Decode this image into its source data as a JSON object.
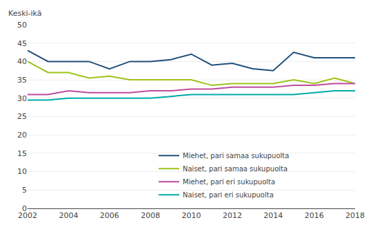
{
  "chart_data": {
    "type": "line",
    "ylabel": "Keski-ikä",
    "x": [
      2002,
      2003,
      2004,
      2005,
      2006,
      2007,
      2008,
      2009,
      2010,
      2011,
      2012,
      2013,
      2014,
      2015,
      2016,
      2017,
      2018
    ],
    "series": [
      {
        "name": "Miehet, pari samaa sukupuolta",
        "color": "#1F4E79",
        "values": [
          43,
          40,
          40,
          40,
          38,
          40,
          40,
          40.5,
          42,
          39,
          39.5,
          38,
          37.5,
          42.5,
          41,
          41,
          41
        ]
      },
      {
        "name": "Naiset, pari samaa sukupuolta",
        "color": "#9DC219",
        "values": [
          40,
          37,
          37,
          35.5,
          36,
          35,
          35,
          35,
          35,
          33.5,
          34,
          34,
          34,
          35,
          34,
          35.5,
          34
        ]
      },
      {
        "name": "Miehet, pari eri sukupuolta",
        "color": "#BE4B9E",
        "values": [
          31,
          31,
          32,
          31.5,
          31.5,
          31.5,
          32,
          32,
          32.5,
          32.5,
          33,
          33,
          33,
          33.5,
          33.5,
          34,
          34
        ]
      },
      {
        "name": "Naiset, pari eri sukupuolta",
        "color": "#00AAAA",
        "values": [
          29.5,
          29.5,
          30,
          30,
          30,
          30,
          30,
          30.5,
          31,
          31,
          31,
          31,
          31,
          31,
          31.5,
          32,
          32
        ]
      }
    ],
    "xlim": [
      2002,
      2018
    ],
    "xticks": [
      2002,
      2004,
      2006,
      2008,
      2010,
      2012,
      2014,
      2016,
      2018
    ],
    "ylim": [
      0,
      50
    ],
    "yticks": [
      0,
      5,
      10,
      15,
      20,
      25,
      30,
      35,
      40,
      45,
      50
    ],
    "grid": "y",
    "legend": "lower center"
  }
}
